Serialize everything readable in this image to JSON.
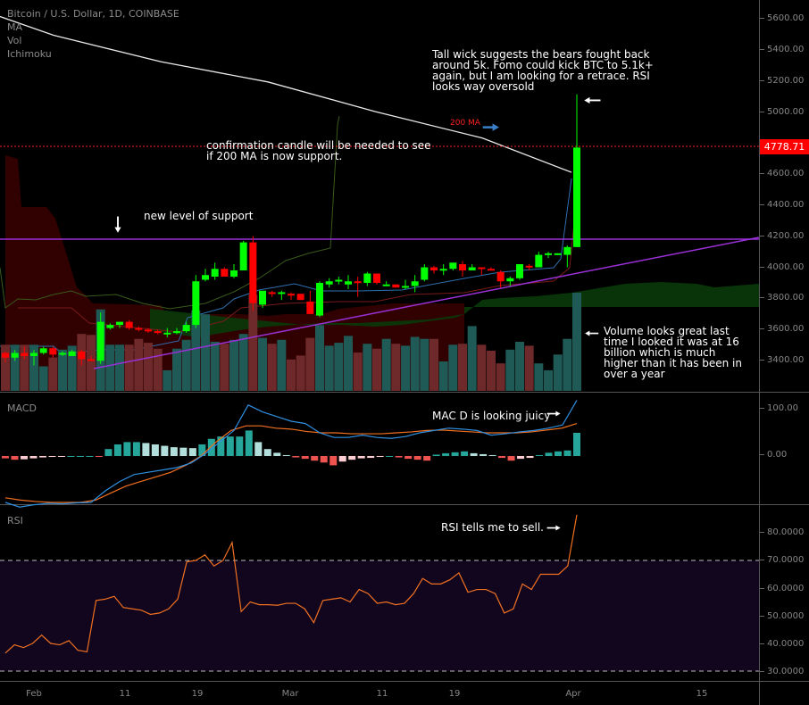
{
  "header": {
    "title": "Bitcoin / U.S. Dollar, 1D, COINBASE",
    "indicators": [
      "MA",
      "Vol",
      "Ichimoku"
    ]
  },
  "price_axis": {
    "ticks": [
      "5600.00",
      "5400.00",
      "5200.00",
      "5000.00",
      "4600.00",
      "4400.00",
      "4200.00",
      "4000.00",
      "3800.00",
      "3600.00",
      "3400.00"
    ],
    "tick_values": [
      5600,
      5400,
      5200,
      5000,
      4600,
      4400,
      4200,
      4000,
      3800,
      3600,
      3400
    ],
    "last_price": "4778.71",
    "last_price_color": "#ff0000"
  },
  "macd_pane": {
    "label": "MACD",
    "ticks": [
      "100.00",
      "0.00"
    ]
  },
  "rsi_pane": {
    "label": "RSI",
    "ticks": [
      "80.0000",
      "70.0000",
      "60.0000",
      "50.0000",
      "40.0000",
      "30.0000"
    ]
  },
  "time_axis": {
    "labels": [
      "Feb",
      "11",
      "19",
      "Mar",
      "11",
      "19",
      "Apr",
      "15"
    ]
  },
  "annotations": {
    "tall_wick": "Tall wick suggests the bears fought back\naround 5k. Fomo could kick BTC to 5.1k+\nagain, but I am looking for a retrace. RSI\nlooks way oversold",
    "ma_label": "200 MA",
    "confirmation": "confirmation candle will be needed to see\nif 200 MA is now support.",
    "support": "new level of support",
    "volume": "Volume looks great last\ntime I looked it was at 16\nbillion which is much\nhigher than it has been in\nover a year",
    "macd": "MAC D is looking juicy",
    "rsi": "RSI tells me to sell."
  },
  "colors": {
    "bull": "#00ff00",
    "bear": "#ff0000",
    "vol_bull": "#1f5a57",
    "vol_bear": "#6e2a2a",
    "ma": "#e8e8e8",
    "support_line": "#9b30d9",
    "macd_line": "#2f8fe0",
    "signal_line": "#f07020",
    "rsi_line": "#f07020",
    "rsi_band": "#12061f"
  },
  "chart_data": [
    {
      "type": "candlestick",
      "title": "Bitcoin / U.S. Dollar, 1D, COINBASE",
      "xlabel": "",
      "ylabel": "USD",
      "ylim": [
        3250,
        5700
      ],
      "x_tick_labels": [
        "Feb",
        "11",
        "19",
        "Mar",
        "11",
        "19",
        "Apr",
        "15"
      ],
      "ohlc": [
        [
          3460,
          3470,
          3400,
          3430
        ],
        [
          3430,
          3480,
          3410,
          3460
        ],
        [
          3460,
          3500,
          3420,
          3440
        ],
        [
          3440,
          3480,
          3380,
          3460
        ],
        [
          3460,
          3500,
          3450,
          3490
        ],
        [
          3490,
          3500,
          3430,
          3450
        ],
        [
          3450,
          3470,
          3440,
          3460
        ],
        [
          3440,
          3480,
          3440,
          3470
        ],
        [
          3470,
          3480,
          3380,
          3420
        ],
        [
          3420,
          3440,
          3410,
          3410
        ],
        [
          3410,
          3720,
          3390,
          3660
        ],
        [
          3620,
          3650,
          3610,
          3640
        ],
        [
          3640,
          3660,
          3620,
          3660
        ],
        [
          3660,
          3670,
          3610,
          3620
        ],
        [
          3620,
          3630,
          3600,
          3610
        ],
        [
          3610,
          3620,
          3590,
          3600
        ],
        [
          3600,
          3610,
          3580,
          3590
        ],
        [
          3580,
          3620,
          3560,
          3590
        ],
        [
          3590,
          3620,
          3580,
          3600
        ],
        [
          3600,
          3660,
          3590,
          3640
        ],
        [
          3640,
          3960,
          3620,
          3920
        ],
        [
          3930,
          4000,
          3920,
          3960
        ],
        [
          3950,
          4040,
          3930,
          4000
        ],
        [
          4000,
          4010,
          3970,
          3950
        ],
        [
          3950,
          4030,
          3940,
          3990
        ],
        [
          3990,
          4180,
          3990,
          4170
        ],
        [
          4170,
          4210,
          3730,
          3780
        ],
        [
          3770,
          3850,
          3750,
          3860
        ],
        [
          3850,
          3860,
          3820,
          3840
        ],
        [
          3840,
          3860,
          3800,
          3850
        ],
        [
          3840,
          3850,
          3800,
          3830
        ],
        [
          3840,
          3830,
          3810,
          3800
        ],
        [
          3790,
          3860,
          3740,
          3710
        ],
        [
          3700,
          3920,
          3690,
          3910
        ],
        [
          3900,
          3940,
          3880,
          3920
        ],
        [
          3920,
          3950,
          3900,
          3930
        ],
        [
          3900,
          3960,
          3870,
          3920
        ],
        [
          3920,
          3950,
          3820,
          3910
        ],
        [
          3910,
          3980,
          3890,
          3970
        ],
        [
          3970,
          3960,
          3900,
          3910
        ],
        [
          3900,
          3920,
          3900,
          3900
        ],
        [
          3900,
          3900,
          3880,
          3880
        ],
        [
          3880,
          3930,
          3870,
          3890
        ],
        [
          3890,
          3960,
          3850,
          3920
        ],
        [
          3930,
          4030,
          3920,
          4010
        ],
        [
          4010,
          4020,
          3970,
          3990
        ],
        [
          3990,
          4030,
          3960,
          4000
        ],
        [
          4000,
          4040,
          3990,
          4040
        ],
        [
          4030,
          4050,
          3950,
          3990
        ],
        [
          3990,
          4030,
          3990,
          4010
        ],
        [
          4010,
          4010,
          3960,
          4000
        ],
        [
          4000,
          4010,
          3990,
          3990
        ],
        [
          3980,
          3990,
          3880,
          3920
        ],
        [
          3920,
          3950,
          3890,
          3940
        ],
        [
          3940,
          4030,
          3930,
          4030
        ],
        [
          4020,
          4030,
          3990,
          4010
        ],
        [
          4010,
          4110,
          4010,
          4090
        ],
        [
          4090,
          4110,
          4070,
          4100
        ],
        [
          4100,
          4100,
          4090,
          4100
        ],
        [
          4090,
          4150,
          4010,
          4140
        ],
        [
          4140,
          5120,
          4140,
          4778.71
        ]
      ],
      "volume_relative": [
        0.47,
        0.47,
        0.47,
        0.47,
        0.25,
        0.34,
        0.42,
        0.46,
        0.58,
        0.57,
        0.83,
        0.47,
        0.47,
        0.47,
        0.53,
        0.49,
        0.43,
        0.21,
        0.43,
        0.52,
        0.82,
        0.78,
        0.5,
        0.48,
        0.52,
        0.58,
        0.98,
        0.54,
        0.48,
        0.52,
        0.32,
        0.36,
        0.54,
        0.67,
        0.46,
        0.49,
        0.56,
        0.39,
        0.48,
        0.43,
        0.53,
        0.48,
        0.46,
        0.55,
        0.53,
        0.53,
        0.3,
        0.47,
        0.48,
        0.66,
        0.47,
        0.41,
        0.28,
        0.42,
        0.5,
        0.46,
        0.28,
        0.21,
        0.37,
        0.53,
        1.0
      ],
      "series": [
        {
          "name": "MA 200",
          "values_at_x": [
            [
              0,
              5620
            ],
            [
              60,
              5500
            ],
            [
              180,
              5330
            ],
            [
              300,
              5200
            ],
            [
              420,
              5010
            ],
            [
              540,
              4840
            ],
            [
              640,
              4620
            ]
          ]
        },
        {
          "name": "Support (horizontal)",
          "value": 4200
        },
        {
          "name": "Rising trendline",
          "from": [
            105,
            3350
          ],
          "to": [
            850,
            4200
          ]
        }
      ]
    },
    {
      "type": "bar+line",
      "title": "MACD",
      "ylim": [
        -150,
        150
      ],
      "series": [
        {
          "name": "MACD",
          "values": [
            -100,
            -110,
            -105,
            -102,
            -103,
            -101,
            -100,
            -75,
            -55,
            -40,
            -35,
            -30,
            -25,
            -15,
            5,
            30,
            55,
            110,
            95,
            85,
            75,
            70,
            50,
            40,
            40,
            45,
            40,
            38,
            42,
            50,
            55,
            60,
            58,
            55,
            45,
            48,
            52,
            55,
            60,
            67,
            120
          ]
        },
        {
          "name": "Signal",
          "values": [
            -90,
            -95,
            -98,
            -100,
            -100,
            -100,
            -95,
            -80,
            -65,
            -55,
            -45,
            -35,
            -20,
            0,
            30,
            55,
            65,
            65,
            60,
            58,
            53,
            50,
            50,
            48,
            48,
            48,
            50,
            52,
            55,
            56,
            54,
            52,
            50,
            50,
            50,
            52,
            56,
            60,
            70
          ]
        },
        {
          "name": "Histogram",
          "values": [
            -5,
            -8,
            -7,
            -5,
            -3,
            -2,
            -1,
            0,
            0,
            0,
            -2,
            15,
            25,
            30,
            30,
            28,
            25,
            22,
            19,
            18,
            17,
            25,
            37,
            42,
            42,
            42,
            55,
            30,
            15,
            7,
            2,
            -3,
            -6,
            -10,
            -14,
            -20,
            -12,
            -8,
            -5,
            -4,
            -2,
            0,
            -3,
            -6,
            -8,
            -10,
            3,
            6,
            8,
            10,
            6,
            4,
            2,
            -4,
            -10,
            -6,
            -4,
            2,
            7,
            10,
            12,
            50
          ]
        }
      ]
    },
    {
      "type": "line",
      "title": "RSI",
      "ylim": [
        27,
        88
      ],
      "bands": [
        30,
        70
      ],
      "series": [
        {
          "name": "RSI",
          "values": [
            36.5,
            39.5,
            38.5,
            40,
            43,
            40,
            39.5,
            41,
            37.5,
            37,
            55.5,
            56,
            57,
            53,
            52.5,
            52,
            50.5,
            51,
            52.5,
            56,
            69.5,
            70,
            72,
            68,
            70,
            76.5,
            51.5,
            55,
            54,
            54,
            53.8,
            54.5,
            54.5,
            52.5,
            47.5,
            55.5,
            56,
            56.5,
            55,
            59.5,
            58,
            54.5,
            55,
            54,
            54.5,
            58,
            63.5,
            61.5,
            61.5,
            63,
            65.5,
            58.5,
            59.5,
            59.5,
            58,
            51,
            52.5,
            61.5,
            59.5,
            65,
            65,
            65,
            68,
            86.5
          ]
        }
      ]
    }
  ]
}
